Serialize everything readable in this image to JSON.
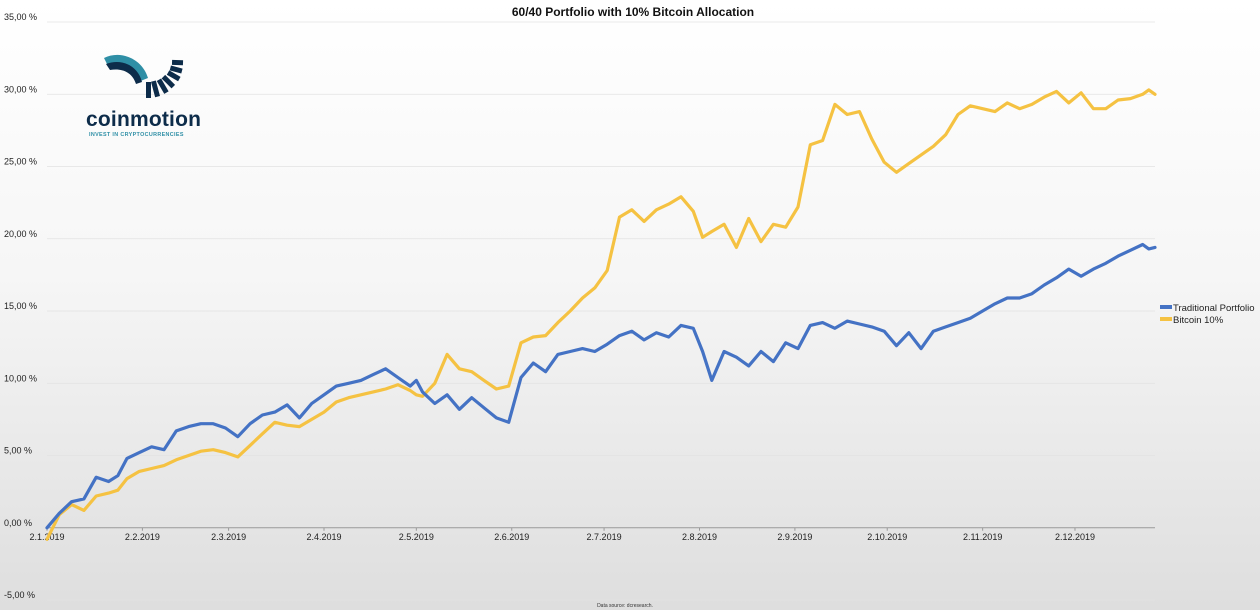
{
  "brand": {
    "name": "coinmotion",
    "tagline": "INVEST IN CRYPTOCURRENCIES",
    "colors": {
      "dark": "#0d2c4a",
      "teal": "#2f8fa6"
    }
  },
  "chart_data": {
    "type": "line",
    "title": "60/40 Portfolio with 10% Bitcoin Allocation",
    "xlabel": "",
    "ylabel": "",
    "ylim": [
      -5,
      35
    ],
    "yticks": [
      -5,
      0,
      5,
      10,
      15,
      20,
      25,
      30,
      35
    ],
    "ytick_labels": [
      "-5,00 %",
      "0,00 %",
      "5,00 %",
      "10,00 %",
      "15,00 %",
      "20,00 %",
      "25,00 %",
      "30,00 %",
      "35,00 %"
    ],
    "xlim": [
      0,
      360
    ],
    "x_units": "days since 2.1.2019",
    "xticks": [
      0,
      31,
      59,
      90,
      120,
      151,
      181,
      212,
      243,
      273,
      304,
      334
    ],
    "xtick_labels": [
      "2.1.2019",
      "2.2.2019",
      "2.3.2019",
      "2.4.2019",
      "2.5.2019",
      "2.6.2019",
      "2.7.2019",
      "2.8.2019",
      "2.9.2019",
      "2.10.2019",
      "2.11.2019",
      "2.12.2019"
    ],
    "grid": true,
    "legend_position": "right",
    "source_note": "Data source: dcresearch.",
    "series": [
      {
        "name": "Traditional Portfolio",
        "color": "#4472c4",
        "x": [
          0,
          4,
          8,
          12,
          16,
          20,
          23,
          26,
          30,
          34,
          38,
          42,
          46,
          50,
          54,
          58,
          62,
          66,
          70,
          74,
          78,
          82,
          86,
          90,
          94,
          98,
          102,
          106,
          110,
          114,
          118,
          120,
          122,
          126,
          130,
          134,
          138,
          142,
          146,
          150,
          154,
          158,
          162,
          166,
          170,
          174,
          178,
          182,
          186,
          190,
          194,
          198,
          202,
          206,
          210,
          213,
          216,
          220,
          224,
          228,
          232,
          236,
          240,
          244,
          248,
          252,
          256,
          260,
          264,
          268,
          272,
          276,
          280,
          284,
          288,
          292,
          296,
          300,
          304,
          308,
          312,
          316,
          320,
          324,
          328,
          332,
          336,
          340,
          344,
          348,
          352,
          356,
          358,
          360
        ],
        "values": [
          0.0,
          1.0,
          1.8,
          2.0,
          3.5,
          3.2,
          3.6,
          4.8,
          5.2,
          5.6,
          5.4,
          6.7,
          7.0,
          7.2,
          7.2,
          6.9,
          6.3,
          7.2,
          7.8,
          8.0,
          8.5,
          7.6,
          8.6,
          9.2,
          9.8,
          10.0,
          10.2,
          10.6,
          11.0,
          10.4,
          9.8,
          10.2,
          9.4,
          8.6,
          9.2,
          8.2,
          9.0,
          8.3,
          7.6,
          7.3,
          10.4,
          11.4,
          10.8,
          12.0,
          12.2,
          12.4,
          12.2,
          12.7,
          13.3,
          13.6,
          13.0,
          13.5,
          13.2,
          14.0,
          13.8,
          12.2,
          10.2,
          12.2,
          11.8,
          11.2,
          12.2,
          11.5,
          12.8,
          12.4,
          14.0,
          14.2,
          13.8,
          14.3,
          14.1,
          13.9,
          13.6,
          12.6,
          13.5,
          12.4,
          13.6,
          13.9,
          14.2,
          14.5,
          15.0,
          15.5,
          15.9,
          15.9,
          16.2,
          16.8,
          17.3,
          17.9,
          17.4,
          17.9,
          18.3,
          18.8,
          19.2,
          19.6,
          19.3,
          19.4
        ]
      },
      {
        "name": "Bitcoin 10%",
        "color": "#f5c242",
        "x": [
          0,
          4,
          8,
          12,
          16,
          20,
          23,
          26,
          30,
          34,
          38,
          42,
          46,
          50,
          54,
          58,
          62,
          66,
          70,
          74,
          78,
          82,
          86,
          90,
          94,
          98,
          102,
          106,
          110,
          114,
          118,
          120,
          122,
          126,
          130,
          134,
          138,
          142,
          146,
          150,
          154,
          158,
          162,
          166,
          170,
          174,
          178,
          182,
          186,
          190,
          194,
          198,
          202,
          206,
          210,
          213,
          216,
          220,
          224,
          228,
          232,
          236,
          240,
          244,
          248,
          252,
          256,
          260,
          264,
          268,
          272,
          276,
          280,
          284,
          288,
          292,
          296,
          300,
          304,
          308,
          312,
          316,
          320,
          324,
          328,
          332,
          336,
          340,
          344,
          348,
          352,
          356,
          358,
          360
        ],
        "values": [
          -0.8,
          0.9,
          1.6,
          1.2,
          2.2,
          2.4,
          2.6,
          3.4,
          3.9,
          4.1,
          4.3,
          4.7,
          5.0,
          5.3,
          5.4,
          5.2,
          4.9,
          5.7,
          6.5,
          7.3,
          7.1,
          7.0,
          7.5,
          8.0,
          8.7,
          9.0,
          9.2,
          9.4,
          9.6,
          9.9,
          9.5,
          9.2,
          9.1,
          10.0,
          12.0,
          11.0,
          10.8,
          10.2,
          9.6,
          9.8,
          12.8,
          13.2,
          13.3,
          14.2,
          15.0,
          15.9,
          16.6,
          17.8,
          21.5,
          22.0,
          21.2,
          22.0,
          22.4,
          22.9,
          21.9,
          20.1,
          20.5,
          21.0,
          19.4,
          21.4,
          19.8,
          21.0,
          20.8,
          22.2,
          26.5,
          26.8,
          29.3,
          28.6,
          28.8,
          26.9,
          25.3,
          24.6,
          25.2,
          25.8,
          26.4,
          27.2,
          28.6,
          29.2,
          29.0,
          28.8,
          29.4,
          29.0,
          29.3,
          29.8,
          30.2,
          29.4,
          30.1,
          29.0,
          29.0,
          29.6,
          29.7,
          30.0,
          30.3,
          30.0
        ]
      }
    ]
  }
}
